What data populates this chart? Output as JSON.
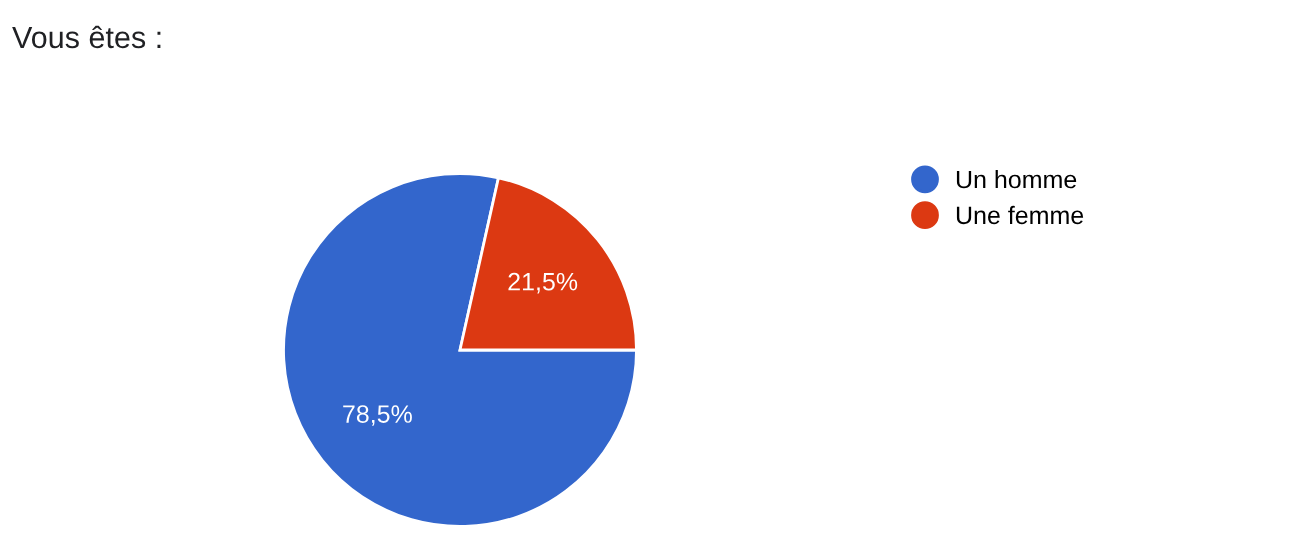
{
  "chart_data": {
    "type": "pie",
    "title": "Vous êtes :",
    "categories": [
      "Un homme",
      "Une femme"
    ],
    "values": [
      78.5,
      21.5
    ],
    "value_labels": [
      "78,5%",
      "21,5%"
    ],
    "colors": [
      "#3366cc",
      "#dc3912"
    ],
    "legend": "right"
  }
}
